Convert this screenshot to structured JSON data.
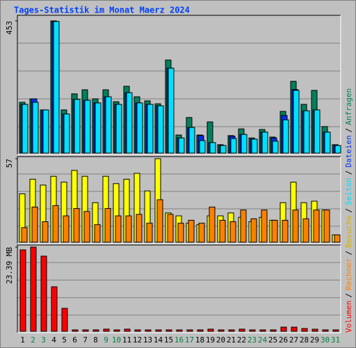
{
  "chart_data": {
    "type": "bar",
    "title": "Tages-Statistik im Monat Maerz 2024",
    "categories": [
      "1",
      "2",
      "3",
      "4",
      "5",
      "6",
      "7",
      "8",
      "9",
      "10",
      "11",
      "12",
      "13",
      "14",
      "15",
      "16",
      "17",
      "18",
      "19",
      "20",
      "21",
      "22",
      "23",
      "24",
      "25",
      "26",
      "27",
      "28",
      "29",
      "30",
      "31"
    ],
    "category_colors": [
      "#000000",
      "#008040",
      "#008040",
      "#000000",
      "#000000",
      "#000000",
      "#000000",
      "#000000",
      "#008040",
      "#008040",
      "#000000",
      "#000000",
      "#000000",
      "#000000",
      "#000000",
      "#008040",
      "#008040",
      "#000000",
      "#000000",
      "#000000",
      "#000000",
      "#000000",
      "#008040",
      "#008040",
      "#000000",
      "#000000",
      "#000000",
      "#000000",
      "#000000",
      "#008040",
      "#008040"
    ],
    "legend_separator": "/",
    "panels": [
      {
        "ylim": [
          0,
          453
        ],
        "yticks": [
          453
        ],
        "series": [
          {
            "name": "Anfragen",
            "color": "#00805c",
            "values": [
              174,
              186,
              148,
              453,
              148,
              203,
              217,
              186,
              217,
              176,
              229,
              193,
              179,
              169,
              319,
              62,
              122,
              62,
              107,
              29,
              60,
              83,
              52,
              81,
              55,
              143,
              246,
              167,
              215,
              91,
              29
            ]
          },
          {
            "name": "Dateien",
            "color": "#0030f0",
            "values": [
              167,
              186,
              148,
              451,
              134,
              184,
              181,
              172,
              193,
              167,
              207,
              172,
              167,
              162,
              291,
              52,
              88,
              60,
              36,
              26,
              58,
              64,
              48,
              72,
              52,
              129,
              218,
              145,
              148,
              72,
              26
            ]
          },
          {
            "name": "Seiten",
            "color": "#00e0ff",
            "values": [
              167,
              174,
              148,
              451,
              134,
              184,
              181,
              172,
              193,
              167,
              207,
              172,
              167,
              162,
              291,
              52,
              88,
              43,
              36,
              26,
              50,
              64,
              48,
              72,
              41,
              114,
              215,
              145,
              148,
              72,
              26
            ]
          }
        ]
      },
      {
        "ylim": [
          0,
          57
        ],
        "yticks": [
          57
        ],
        "series": [
          {
            "name": "Besuche",
            "color": "#ffff00",
            "values": [
              33,
              43,
              39,
              45,
              41,
              49,
              45,
              27,
              45,
              40,
              43,
              47,
              35,
              57,
              20,
              18,
              13,
              12,
              18,
              18,
              20,
              17,
              14,
              17,
              15,
              27,
              41,
              27,
              28,
              22,
              5
            ]
          },
          {
            "name": "Rechner",
            "color": "#ff8000",
            "values": [
              10,
              24,
              14,
              25,
              18,
              23,
              21,
              12,
              23,
              18,
              18,
              19,
              13,
              29,
              19,
              13,
              15,
              13,
              24,
              15,
              14,
              22,
              16,
              22,
              15,
              15,
              22,
              16,
              22,
              22,
              5
            ]
          }
        ]
      },
      {
        "ylim": [
          0,
          23.39
        ],
        "yticks": [
          {
            "value": 23.39,
            "label": "23.39 MB"
          }
        ],
        "series": [
          {
            "name": "Volumen",
            "color": "#ff0000",
            "values": [
              22.62,
              23.39,
              20.88,
              12.37,
              6.38,
              0.4,
              0.4,
              0.4,
              0.6,
              0.4,
              0.6,
              0.4,
              0.4,
              0.4,
              0.4,
              0.4,
              0.4,
              0.4,
              0.6,
              0.4,
              0.4,
              0.6,
              0.4,
              0.4,
              0.4,
              1.16,
              1.16,
              0.77,
              0.58,
              0.4,
              0.4
            ]
          }
        ]
      }
    ]
  }
}
